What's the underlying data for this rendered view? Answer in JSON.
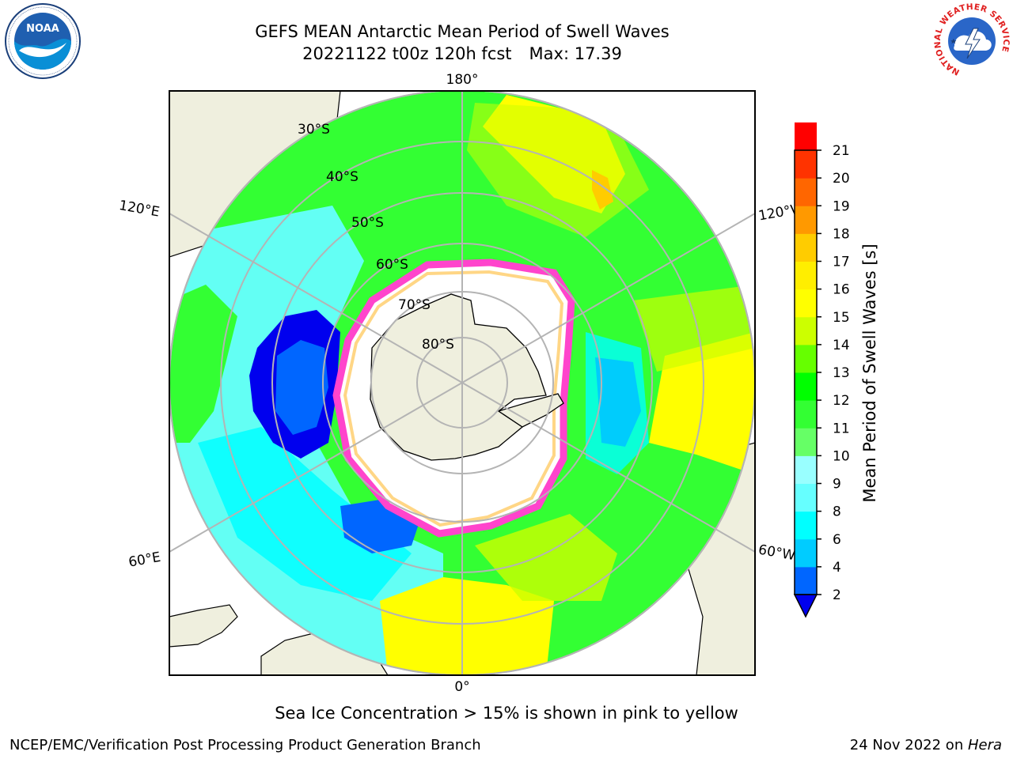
{
  "header": {
    "title": "GEFS MEAN Antarctic Mean Period of Swell Waves",
    "run": "20221122 t00z 120h fcst",
    "max": "Max: 17.39"
  },
  "logos": {
    "left": {
      "name": "noaa-logo",
      "text": "NOAA"
    },
    "right": {
      "name": "national-weather-service-logo",
      "text": "NATIONAL WEATHER SERVICE"
    }
  },
  "map": {
    "projection": "south-polar-stereographic",
    "longitude_labels": {
      "top": "180°",
      "bottom": "0°",
      "upper_left": "120°E",
      "upper_right": "120°W",
      "lower_left": "60°E",
      "lower_right": "60°W"
    },
    "latitude_labels": [
      "30°S",
      "40°S",
      "50°S",
      "60°S",
      "70°S",
      "80°S"
    ],
    "colors": {
      "land": "#efefde",
      "ocean_fill": "#ffffff",
      "grid": "#b4b4b4",
      "sea_ice_edge": "#ff44cc"
    }
  },
  "colorbar": {
    "label": "Mean Period of Swell Waves [s]",
    "ticks": [
      "2",
      "4",
      "6",
      "8",
      "9",
      "10",
      "11",
      "12",
      "13",
      "14",
      "15",
      "16",
      "17",
      "18",
      "19",
      "20",
      "21"
    ],
    "colors": [
      "#0066ff",
      "#00ccff",
      "#00ffff",
      "#66ffff",
      "#99ffff",
      "#66ff66",
      "#33ff33",
      "#00ff00",
      "#66ff00",
      "#ccff00",
      "#ffff00",
      "#ffee00",
      "#ffcc00",
      "#ff9900",
      "#ff6600",
      "#ff3300",
      "#ff0000"
    ],
    "under_color": "#0000ee"
  },
  "caption": "Sea Ice Concentration > 15% is shown in pink to yellow",
  "footer": {
    "left": "NCEP/EMC/Verification Post Processing Product Generation Branch",
    "date": "24 Nov 2022 on ",
    "host": "Hera"
  }
}
